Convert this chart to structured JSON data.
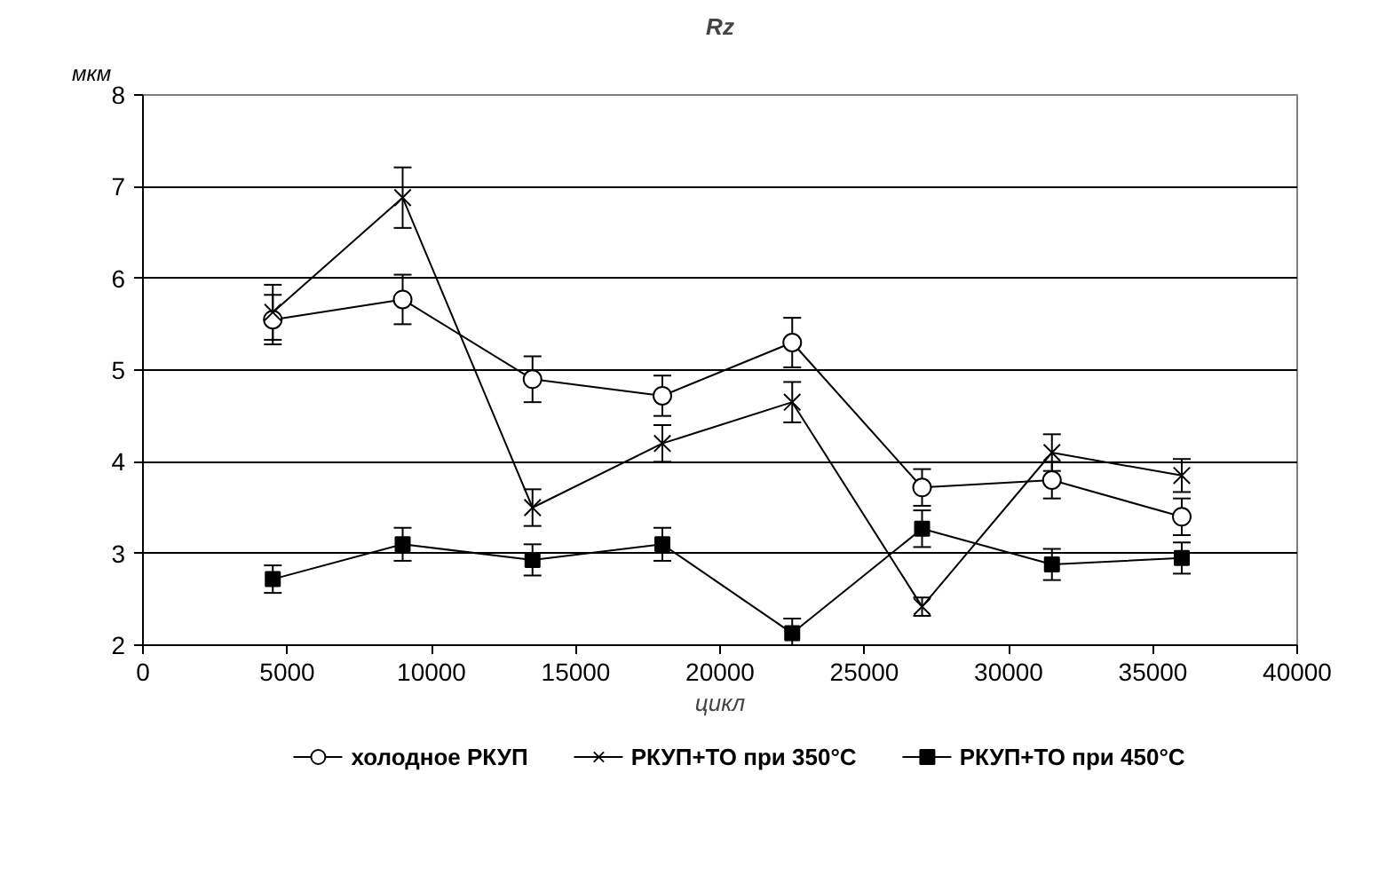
{
  "chart_data": {
    "type": "line",
    "title": "Rz",
    "xlabel": "цикл",
    "ylabel": "мкм",
    "x": [
      4500,
      9000,
      13500,
      18000,
      22500,
      27000,
      31500,
      36000
    ],
    "xlim": [
      0,
      40000
    ],
    "xticks": [
      0,
      5000,
      10000,
      15000,
      20000,
      25000,
      30000,
      35000,
      40000
    ],
    "ylim": [
      2,
      8
    ],
    "yticks": [
      2,
      3,
      4,
      5,
      6,
      7,
      8
    ],
    "grid": "y",
    "legend": "bottom",
    "series": [
      {
        "name": "холодное РКУП",
        "color": "#000000",
        "marker": "circle",
        "values": [
          5.55,
          5.77,
          4.9,
          4.72,
          5.3,
          3.72,
          3.8,
          3.4
        ],
        "errors": [
          0.27,
          0.27,
          0.25,
          0.22,
          0.27,
          0.2,
          0.2,
          0.2
        ]
      },
      {
        "name": "РКУП+ТО при 350°C",
        "color": "#000000",
        "marker": "cross",
        "values": [
          5.63,
          6.88,
          3.5,
          4.2,
          4.65,
          2.42,
          4.1,
          3.85
        ],
        "errors": [
          0.3,
          0.33,
          0.2,
          0.2,
          0.22,
          0.1,
          0.2,
          0.18
        ]
      },
      {
        "name": "РКУП+ТО при 450°C",
        "color": "#000000",
        "marker": "square",
        "values": [
          2.72,
          3.1,
          2.93,
          3.1,
          2.13,
          3.27,
          2.88,
          2.95
        ],
        "errors": [
          0.15,
          0.18,
          0.17,
          0.18,
          0.16,
          0.2,
          0.17,
          0.17
        ]
      }
    ]
  }
}
